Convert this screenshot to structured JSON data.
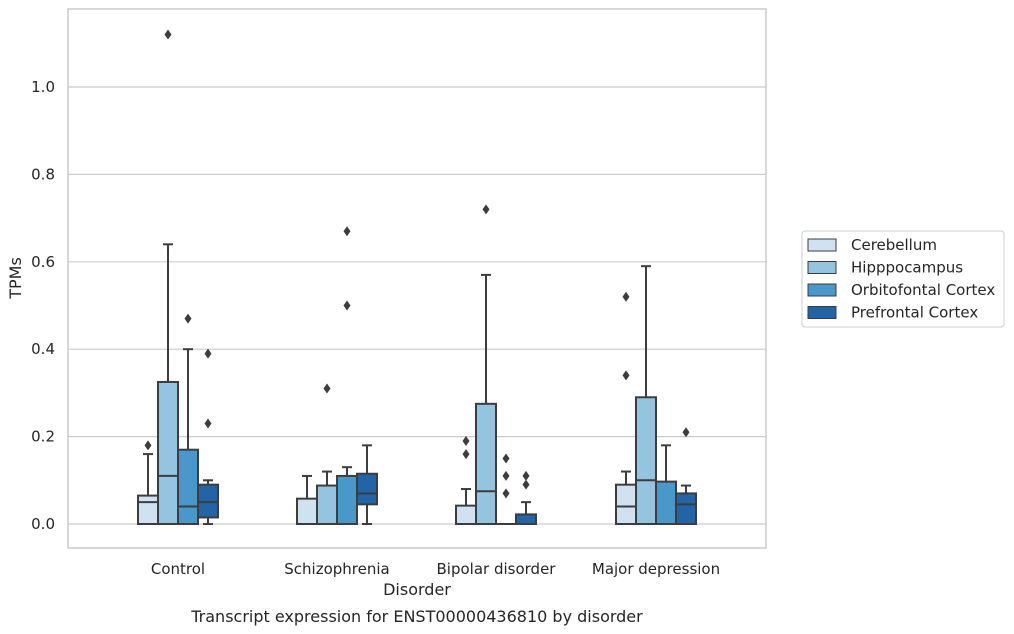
{
  "chart_data": {
    "type": "box",
    "title": "",
    "caption": "Transcript expression for ENST00000436810 by disorder",
    "xlabel": "Disorder",
    "ylabel": "TPMs",
    "ylim": [
      -0.055,
      1.18
    ],
    "yticks": [
      0.0,
      0.2,
      0.4,
      0.6,
      0.8,
      1.0
    ],
    "ytick_labels": [
      "0.0",
      "0.2",
      "0.4",
      "0.6",
      "0.8",
      "1.0"
    ],
    "grid": "horizontal",
    "legend_position": "right",
    "categories": [
      "Control",
      "Schizophrenia",
      "Bipolar disorder",
      "Major depression"
    ],
    "series": [
      {
        "name": "Cerebellum",
        "color": "#d0e1f2",
        "boxes": [
          {
            "whislo": 0.0,
            "q1": 0.0,
            "med": 0.05,
            "q3": 0.065,
            "whishi": 0.16,
            "fliers": [
              0.18
            ]
          },
          {
            "whislo": 0.0,
            "q1": 0.0,
            "med": 0.0,
            "q3": 0.058,
            "whishi": 0.11,
            "fliers": []
          },
          {
            "whislo": 0.0,
            "q1": 0.0,
            "med": 0.0,
            "q3": 0.042,
            "whishi": 0.08,
            "fliers": [
              0.16,
              0.19
            ]
          },
          {
            "whislo": 0.0,
            "q1": 0.0,
            "med": 0.04,
            "q3": 0.09,
            "whishi": 0.12,
            "fliers": [
              0.34,
              0.52
            ]
          }
        ]
      },
      {
        "name": "Hipppocampus",
        "color": "#94c4df",
        "boxes": [
          {
            "whislo": 0.0,
            "q1": 0.0,
            "med": 0.11,
            "q3": 0.325,
            "whishi": 0.64,
            "fliers": [
              1.12
            ]
          },
          {
            "whislo": 0.0,
            "q1": 0.0,
            "med": 0.0,
            "q3": 0.088,
            "whishi": 0.12,
            "fliers": [
              0.31
            ]
          },
          {
            "whislo": 0.0,
            "q1": 0.0,
            "med": 0.075,
            "q3": 0.275,
            "whishi": 0.57,
            "fliers": [
              0.72
            ]
          },
          {
            "whislo": 0.0,
            "q1": 0.0,
            "med": 0.1,
            "q3": 0.29,
            "whishi": 0.59,
            "fliers": []
          }
        ]
      },
      {
        "name": "Orbitofontal Cortex",
        "color": "#4a98c9",
        "boxes": [
          {
            "whislo": 0.0,
            "q1": 0.0,
            "med": 0.04,
            "q3": 0.17,
            "whishi": 0.4,
            "fliers": [
              0.47
            ]
          },
          {
            "whislo": 0.0,
            "q1": 0.0,
            "med": 0.0,
            "q3": 0.11,
            "whishi": 0.13,
            "fliers": [
              0.5,
              0.67
            ]
          },
          {
            "whislo": 0.0,
            "q1": 0.0,
            "med": 0.0,
            "q3": 0.0,
            "whishi": 0.0,
            "fliers": [
              0.07,
              0.11,
              0.15
            ]
          },
          {
            "whislo": 0.0,
            "q1": 0.0,
            "med": 0.0,
            "q3": 0.097,
            "whishi": 0.18,
            "fliers": []
          }
        ]
      },
      {
        "name": "Prefrontal Cortex",
        "color": "#2264a6",
        "boxes": [
          {
            "whislo": 0.0,
            "q1": 0.015,
            "med": 0.05,
            "q3": 0.09,
            "whishi": 0.1,
            "fliers": [
              0.23,
              0.39
            ]
          },
          {
            "whislo": 0.0,
            "q1": 0.045,
            "med": 0.07,
            "q3": 0.115,
            "whishi": 0.18,
            "fliers": []
          },
          {
            "whislo": 0.0,
            "q1": 0.0,
            "med": 0.0,
            "q3": 0.022,
            "whishi": 0.05,
            "fliers": [
              0.09,
              0.11
            ]
          },
          {
            "whislo": 0.0,
            "q1": 0.0,
            "med": 0.045,
            "q3": 0.07,
            "whishi": 0.088,
            "fliers": [
              0.21
            ]
          }
        ]
      }
    ]
  }
}
